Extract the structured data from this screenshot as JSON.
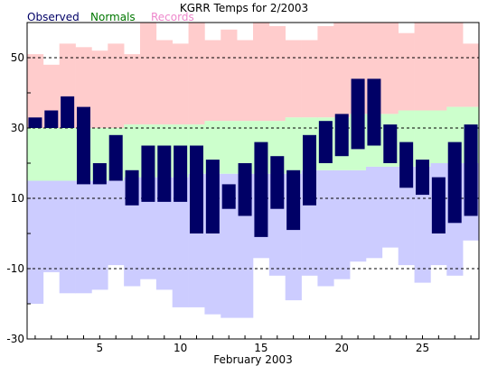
{
  "chart_data": {
    "type": "bar",
    "title": "KGRR Temps for 2/2003",
    "xlabel": "February 2003",
    "ylabel": "",
    "ylim": [
      -30,
      60
    ],
    "xlim": [
      0.5,
      28.5
    ],
    "y_ticks": [
      -30,
      -10,
      10,
      30,
      50
    ],
    "x_ticks": [
      5,
      10,
      15,
      20,
      25
    ],
    "gridlines_at": [
      -10,
      10,
      30,
      50
    ],
    "days": [
      1,
      2,
      3,
      4,
      5,
      6,
      7,
      8,
      9,
      10,
      11,
      12,
      13,
      14,
      15,
      16,
      17,
      18,
      19,
      20,
      21,
      22,
      23,
      24,
      25,
      26,
      27,
      28
    ],
    "legend": [
      {
        "name": "Observed",
        "color": "#000066"
      },
      {
        "name": "Normals",
        "color": "#007700"
      },
      {
        "name": "Records",
        "color": "#ee88cc"
      }
    ],
    "colors": {
      "observed": "#000066",
      "normals_fill": "#ccffcc",
      "records_high_fill": "#ffcccc",
      "records_low_fill": "#ccccff",
      "grid": "#000000"
    },
    "series": [
      {
        "name": "Observed",
        "low": [
          30,
          30,
          30,
          14,
          14,
          15,
          8,
          9,
          9,
          9,
          0,
          0,
          7,
          5,
          -1,
          7,
          1,
          8,
          20,
          22,
          24,
          25,
          20,
          13,
          11,
          0,
          3,
          5
        ],
        "high": [
          33,
          35,
          39,
          36,
          20,
          28,
          18,
          25,
          25,
          25,
          25,
          21,
          14,
          20,
          26,
          22,
          18,
          28,
          32,
          34,
          44,
          44,
          31,
          26,
          21,
          16,
          26,
          31
        ]
      },
      {
        "name": "Normals",
        "low": [
          15,
          15,
          15,
          15,
          15,
          15,
          16,
          16,
          16,
          16,
          17,
          17,
          17,
          17,
          17,
          17,
          17,
          18,
          18,
          18,
          18,
          19,
          19,
          19,
          19,
          20,
          20,
          20
        ],
        "high": [
          30,
          30,
          30,
          30,
          30,
          30,
          31,
          31,
          31,
          31,
          31,
          32,
          32,
          32,
          32,
          32,
          33,
          33,
          33,
          33,
          34,
          34,
          34,
          35,
          35,
          35,
          36,
          36
        ]
      },
      {
        "name": "Records",
        "low": [
          -20,
          -11,
          -17,
          -17,
          -16,
          -9,
          -15,
          -13,
          -16,
          -21,
          -21,
          -23,
          -24,
          -24,
          -7,
          -12,
          -19,
          -12,
          -15,
          -13,
          -8,
          -7,
          -4,
          -9,
          -14,
          -9,
          -12,
          -2
        ],
        "high": [
          51,
          48,
          54,
          53,
          52,
          54,
          51,
          60,
          55,
          54,
          69,
          55,
          58,
          55,
          61,
          59,
          55,
          55,
          59,
          61,
          66,
          67,
          63,
          57,
          61,
          65,
          67,
          54
        ]
      }
    ]
  }
}
